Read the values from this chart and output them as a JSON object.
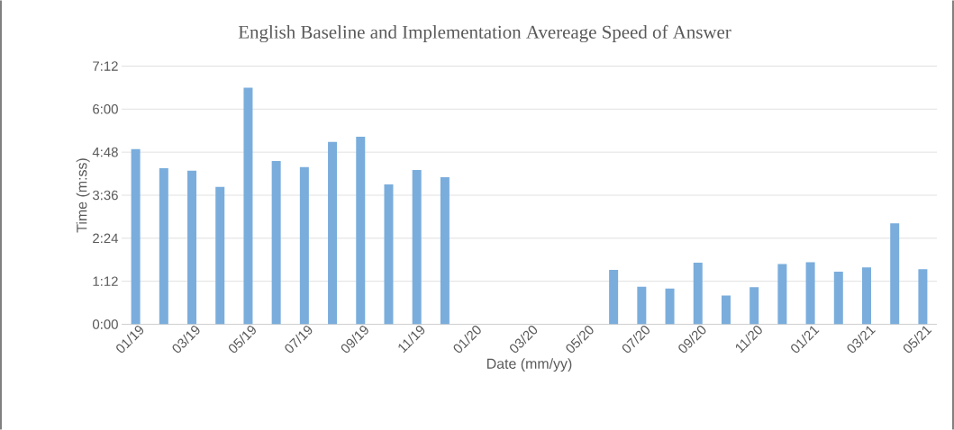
{
  "chart_data": {
    "type": "bar",
    "title": "English  Baseline and Implementation Avereage  Speed of Answer",
    "xlabel": "Date (mm/yy)",
    "ylabel": "Time (m:ss)",
    "categories": [
      "01/19",
      null,
      "03/19",
      null,
      "05/19",
      null,
      "07/19",
      null,
      "09/19",
      null,
      "11/19",
      null,
      "01/20",
      null,
      "03/20",
      null,
      "05/20",
      null,
      "07/20",
      null,
      "09/20",
      null,
      "11/20",
      null,
      "01/21",
      null,
      "03/21",
      null,
      "05/21"
    ],
    "values": [
      293,
      261,
      257,
      230,
      396,
      273,
      263,
      305,
      314,
      234,
      258,
      246,
      null,
      null,
      null,
      null,
      null,
      91,
      63,
      60,
      103,
      48,
      62,
      101,
      104,
      88,
      95,
      169,
      92
    ],
    "color": "#7aaddc",
    "ylim": [
      0,
      432
    ],
    "yticks": [
      {
        "value": 0,
        "label": "0:00"
      },
      {
        "value": 72,
        "label": "1:12"
      },
      {
        "value": 144,
        "label": "2:24"
      },
      {
        "value": 216,
        "label": "3:36"
      },
      {
        "value": 288,
        "label": "4:48"
      },
      {
        "value": 360,
        "label": "6:00"
      },
      {
        "value": 432,
        "label": "7:12"
      }
    ],
    "grid": "y"
  }
}
